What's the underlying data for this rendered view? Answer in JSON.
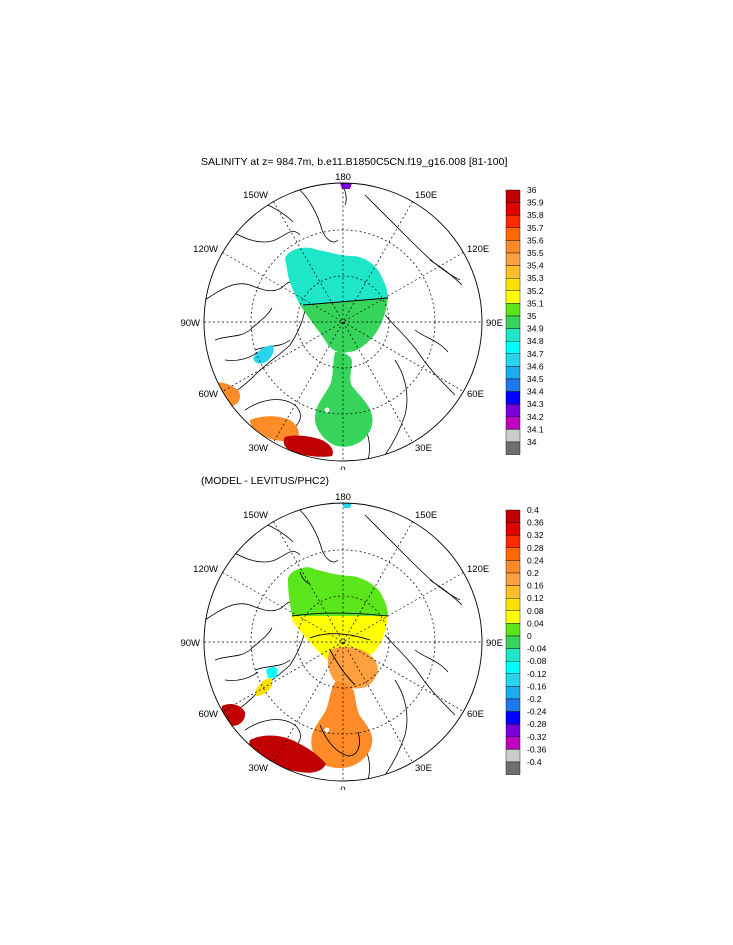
{
  "panels": [
    {
      "id": "salinity",
      "title": "SALINITY at z= 984.7m, b.e11.B1850C5CN.f19_g16.008 [81-100]",
      "lon_labels": {
        "top": "180",
        "bottom": "0",
        "left": "90W",
        "right": "90E",
        "l150": "150W",
        "r150": "150E",
        "l120": "120W",
        "r120": "120E",
        "l60": "60W",
        "r60": "60E",
        "l30": "30W",
        "r30": "30E"
      },
      "colorbar": {
        "ticks": [
          "36",
          "35.9",
          "35.8",
          "35.7",
          "35.6",
          "35.5",
          "35.4",
          "35.3",
          "35.2",
          "35.1",
          "35",
          "34.9",
          "34.8",
          "34.7",
          "34.6",
          "34.5",
          "34.4",
          "34.3",
          "34.2",
          "34.1",
          "34"
        ],
        "colors": [
          "#c00000",
          "#e00000",
          "#ff2a00",
          "#ff6a00",
          "#ff8c28",
          "#ffa040",
          "#ffbf30",
          "#ffe000",
          "#ffff00",
          "#5ae61a",
          "#36d45a",
          "#1ee6c8",
          "#00ffff",
          "#28d4f0",
          "#1eaaf0",
          "#1e78f0",
          "#0000ff",
          "#7a00d8",
          "#c000c0",
          "#cccccc",
          "#6e6e6e"
        ]
      }
    },
    {
      "id": "difference",
      "title": "(MODEL - LEVITUS/PHC2)",
      "lon_labels": {
        "top": "180",
        "bottom": "0",
        "left": "90W",
        "right": "90E",
        "l150": "150W",
        "r150": "150E",
        "l120": "120W",
        "r120": "120E",
        "l60": "60W",
        "r60": "60E",
        "l30": "30W",
        "r30": "30E"
      },
      "colorbar": {
        "ticks": [
          "0.4",
          "0.36",
          "0.32",
          "0.28",
          "0.24",
          "0.2",
          "0.16",
          "0.12",
          "0.08",
          "0.04",
          "0",
          "-0.04",
          "-0.08",
          "-0.12",
          "-0.16",
          "-0.2",
          "-0.24",
          "-0.28",
          "-0.32",
          "-0.36",
          "-0.4"
        ],
        "colors": [
          "#c00000",
          "#e00000",
          "#ff2a00",
          "#ff6a00",
          "#ff8c28",
          "#ffa040",
          "#ffbf30",
          "#ffe000",
          "#ffff00",
          "#5ae61a",
          "#36d45a",
          "#1ee6c8",
          "#00ffff",
          "#28d4f0",
          "#1eaaf0",
          "#1e78f0",
          "#0000ff",
          "#7a00d8",
          "#c000c0",
          "#cccccc",
          "#6e6e6e"
        ]
      }
    }
  ],
  "colors": {
    "arctic_salinity_shelf": "#1ee6c8",
    "arctic_salinity_deep": "#36d45a",
    "atlantic_inflow_salinity": "#36d45a",
    "labrador_cyan": "#28d4f0",
    "atlantic_orange": "#ff8c28",
    "atlantic_red": "#c00000",
    "diff_green": "#5ae61a",
    "diff_yellow": "#ffff00",
    "diff_orange": "#ff8c28",
    "diff_darkred": "#c00000"
  }
}
